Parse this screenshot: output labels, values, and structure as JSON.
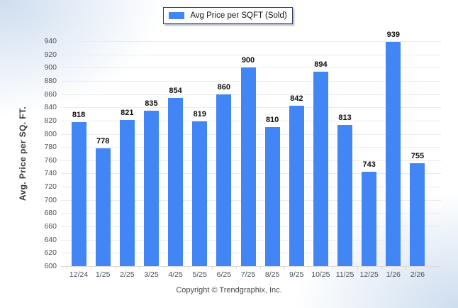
{
  "legend": {
    "label": "Avg Price per SQFT (Sold)"
  },
  "chart_data": {
    "type": "bar",
    "title": "",
    "legend": "Avg Price per SQFT (Sold)",
    "categories": [
      "12/24",
      "1/25",
      "2/25",
      "3/25",
      "4/25",
      "5/25",
      "6/25",
      "7/25",
      "8/25",
      "9/25",
      "10/25",
      "11/25",
      "12/25",
      "1/26",
      "2/26"
    ],
    "values": [
      818,
      778,
      821,
      835,
      854,
      819,
      860,
      900,
      810,
      842,
      894,
      813,
      743,
      939,
      755
    ],
    "xlabel": "",
    "ylabel": "Avg. Price per SQ. FT.",
    "ylim": [
      600,
      940
    ],
    "ytick_step": 20,
    "grid": true,
    "legend_position": "top-center",
    "bar_color": "#4285F4",
    "value_labels": true
  },
  "footer": {
    "copyright": "Copyright © Trendgraphix, Inc."
  },
  "colors": {
    "bar": "#4285F4",
    "gridline": "#ececec",
    "baseline": "#dcdcdc",
    "legend_border": "#27415f",
    "corner_tint": "#c5d7ec"
  }
}
